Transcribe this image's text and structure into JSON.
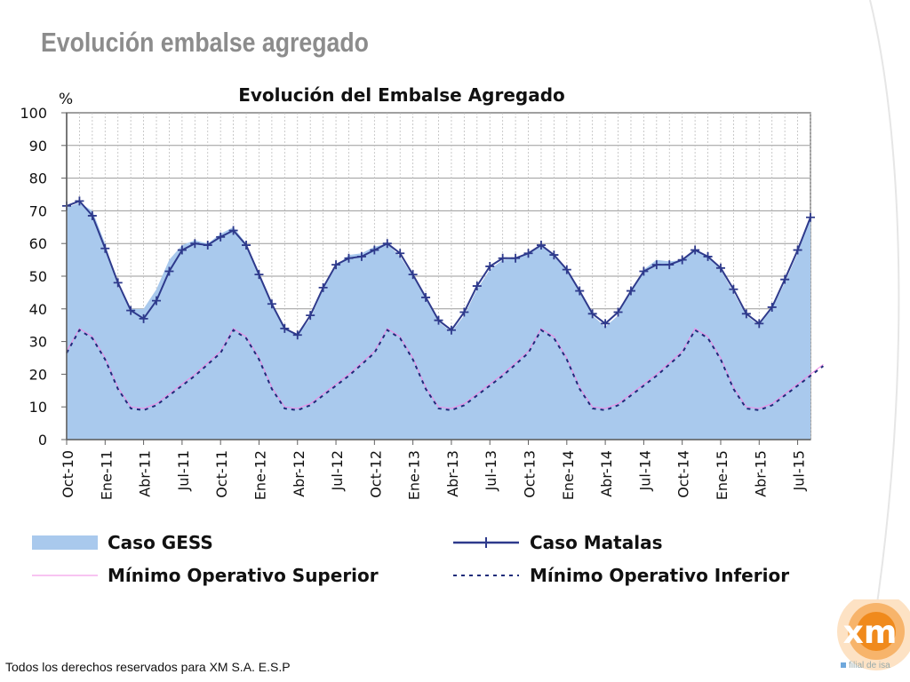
{
  "slide": {
    "title": "Evolución embalse agregado",
    "footer": "Todos los derechos reservados para XM S.A. E.S.P",
    "logo_text": "xm",
    "logo_tagline": "filial de isa"
  },
  "chart_data": {
    "type": "area",
    "title": "Evolución del Embalse Agregado",
    "ylabel": "%",
    "xlabel": "",
    "ylim": [
      0,
      100
    ],
    "yticks": [
      0,
      10,
      20,
      30,
      40,
      50,
      60,
      70,
      80,
      90,
      100
    ],
    "grid": true,
    "legend_position": "bottom",
    "x_tick_labels": [
      "Oct-10",
      "Ene-11",
      "Abr-11",
      "Jul-11",
      "Oct-11",
      "Ene-12",
      "Abr-12",
      "Jul-12",
      "Oct-12",
      "Ene-13",
      "Abr-13",
      "Jul-13",
      "Oct-13",
      "Ene-14",
      "Abr-14",
      "Jul-14",
      "Oct-14",
      "Ene-15",
      "Abr-15",
      "Jul-15"
    ],
    "x_tick_step_months": 3,
    "series": [
      {
        "name": "Caso GESS",
        "kind": "area",
        "color": "#a9c9ed",
        "values": [
          71,
          72.5,
          70,
          60,
          47,
          40,
          40,
          46,
          55,
          59.5,
          61,
          60,
          63,
          65,
          60,
          51,
          42,
          34,
          32,
          37,
          46,
          53,
          56.5,
          57,
          59,
          60,
          56,
          50,
          43,
          36,
          33,
          38,
          46,
          52,
          55,
          55.5,
          57,
          59.5,
          56,
          52,
          45,
          38,
          34.5,
          38,
          46,
          52,
          55,
          54.5,
          55,
          58,
          56,
          52,
          45,
          38,
          35,
          40,
          48,
          57,
          68
        ]
      },
      {
        "name": "Caso Matalas",
        "kind": "line",
        "color": "#2e3a8c",
        "marker": "+",
        "values": [
          71.5,
          73,
          68.5,
          58.5,
          48,
          39.5,
          37,
          42.5,
          51.5,
          58,
          60,
          59.5,
          62,
          64,
          59.5,
          50.5,
          41.5,
          34,
          32,
          38,
          46.5,
          53.5,
          55.5,
          56,
          58,
          60,
          57,
          50.5,
          43.5,
          36.5,
          33.5,
          39,
          47,
          53,
          55.5,
          55.5,
          57,
          59.5,
          56.5,
          52,
          45.5,
          38.5,
          35.5,
          39,
          45.5,
          51.5,
          53.5,
          53.5,
          55,
          58,
          56,
          52.5,
          46,
          38.5,
          35.5,
          40.5,
          49,
          58,
          68
        ]
      },
      {
        "name": "Mínimo Operativo Superior",
        "kind": "line",
        "color": "#f28ae6",
        "values": [
          27,
          34,
          31.5,
          25,
          16,
          10,
          9.5,
          11,
          14,
          17,
          20,
          23.5,
          27,
          34,
          31.5,
          25,
          16,
          10,
          9.5,
          11,
          14,
          17,
          20,
          23.5,
          27,
          34,
          31.5,
          25,
          16,
          10,
          9.5,
          11,
          14,
          17,
          20,
          23.5,
          27,
          34,
          31.5,
          25,
          16,
          10,
          9.5,
          11,
          14,
          17,
          20,
          23.5,
          27,
          34,
          31.5,
          25,
          16,
          10,
          9.5,
          11,
          14,
          17,
          20,
          23
        ]
      },
      {
        "name": "Mínimo Operativo Inferior",
        "kind": "line",
        "color": "#1f2c7a",
        "dash": true,
        "values": [
          26.5,
          33.5,
          31,
          24.5,
          15.5,
          9.5,
          9,
          10.5,
          13.5,
          16.5,
          19.5,
          23,
          26.5,
          33.5,
          31,
          24.5,
          15.5,
          9.5,
          9,
          10.5,
          13.5,
          16.5,
          19.5,
          23,
          26.5,
          33.5,
          31,
          24.5,
          15.5,
          9.5,
          9,
          10.5,
          13.5,
          16.5,
          19.5,
          23,
          26.5,
          33.5,
          31,
          24.5,
          15.5,
          9.5,
          9,
          10.5,
          13.5,
          16.5,
          19.5,
          23,
          26.5,
          33.5,
          31,
          24.5,
          15.5,
          9.5,
          9,
          10.5,
          13.5,
          16.5,
          19.5,
          22.5
        ]
      }
    ]
  }
}
